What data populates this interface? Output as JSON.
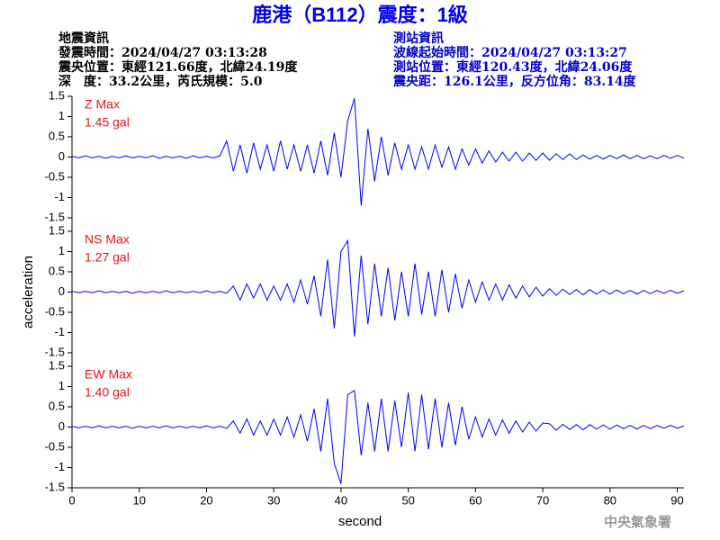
{
  "header": {
    "title": "鹿港（B112）震度：1級",
    "left": [
      "地震資訊",
      "發震時間：2024/04/27 03:13:28",
      "震央位置：東經121.66度，北緯24.19度",
      "深　度：33.2公里，芮氏規模：5.0"
    ],
    "right": [
      "測站資訊",
      "波線起始時間：2024/04/27 03:13:27",
      "測站位置：東經120.43度，北緯24.06度",
      "震央距：126.1公里，反方位角：83.14度"
    ]
  },
  "footer": "中央氣象署",
  "chart_data": [
    {
      "type": "line",
      "label": "Z Max",
      "max_label": "1.45 gal",
      "label_color": "#ee1111",
      "x": [
        0,
        1,
        2,
        3,
        4,
        5,
        6,
        7,
        8,
        9,
        10,
        11,
        12,
        13,
        14,
        15,
        16,
        17,
        18,
        19,
        20,
        21,
        22,
        23,
        24,
        25,
        26,
        27,
        28,
        29,
        30,
        31,
        32,
        33,
        34,
        35,
        36,
        37,
        38,
        39,
        40,
        41,
        42,
        43,
        44,
        45,
        46,
        47,
        48,
        49,
        50,
        51,
        52,
        53,
        54,
        55,
        56,
        57,
        58,
        59,
        60,
        61,
        62,
        63,
        64,
        65,
        66,
        67,
        68,
        69,
        70,
        71,
        72,
        73,
        74,
        75,
        76,
        77,
        78,
        79,
        80,
        81,
        82,
        83,
        84,
        85,
        86,
        87,
        88,
        89,
        90,
        91
      ],
      "series": [
        {
          "color": "#0000ff",
          "values": [
            0.02,
            -0.02,
            0.03,
            -0.02,
            0.02,
            -0.03,
            0.02,
            -0.02,
            0.03,
            -0.02,
            0.02,
            -0.02,
            0.03,
            -0.03,
            0.02,
            -0.02,
            0.02,
            -0.03,
            0.03,
            -0.02,
            0.02,
            -0.02,
            0.03,
            0.4,
            -0.35,
            0.3,
            -0.4,
            0.35,
            -0.3,
            0.3,
            -0.35,
            0.4,
            -0.3,
            0.3,
            -0.35,
            0.3,
            -0.4,
            0.4,
            -0.45,
            0.6,
            -0.5,
            0.9,
            1.45,
            -1.2,
            0.7,
            -0.6,
            0.5,
            -0.45,
            0.35,
            -0.3,
            0.3,
            -0.3,
            0.25,
            -0.3,
            0.3,
            -0.25,
            0.25,
            -0.3,
            0.2,
            -0.2,
            0.2,
            -0.15,
            0.15,
            -0.12,
            0.12,
            -0.1,
            0.12,
            -0.1,
            0.1,
            -0.08,
            0.1,
            -0.08,
            0.08,
            -0.06,
            0.08,
            -0.06,
            0.05,
            -0.05,
            0.04,
            -0.05,
            0.04,
            -0.04,
            0.05,
            -0.04,
            0.04,
            -0.04,
            0.03,
            -0.04,
            0.04,
            -0.03,
            0.04,
            -0.03
          ]
        }
      ],
      "xlim": [
        0,
        91
      ],
      "ylim": [
        -1.5,
        1.5
      ],
      "yticks": [
        -1.5,
        -1,
        -0.5,
        0,
        0.5,
        1,
        1.5
      ]
    },
    {
      "type": "line",
      "label": "NS Max",
      "max_label": "1.27 gal",
      "label_color": "#ee1111",
      "ylabel": "acceleration",
      "x": [
        0,
        1,
        2,
        3,
        4,
        5,
        6,
        7,
        8,
        9,
        10,
        11,
        12,
        13,
        14,
        15,
        16,
        17,
        18,
        19,
        20,
        21,
        22,
        23,
        24,
        25,
        26,
        27,
        28,
        29,
        30,
        31,
        32,
        33,
        34,
        35,
        36,
        37,
        38,
        39,
        40,
        41,
        42,
        43,
        44,
        45,
        46,
        47,
        48,
        49,
        50,
        51,
        52,
        53,
        54,
        55,
        56,
        57,
        58,
        59,
        60,
        61,
        62,
        63,
        64,
        65,
        66,
        67,
        68,
        69,
        70,
        71,
        72,
        73,
        74,
        75,
        76,
        77,
        78,
        79,
        80,
        81,
        82,
        83,
        84,
        85,
        86,
        87,
        88,
        89,
        90,
        91
      ],
      "series": [
        {
          "color": "#0000ff",
          "values": [
            0.02,
            -0.02,
            0.02,
            -0.02,
            0.03,
            -0.02,
            0.02,
            -0.02,
            0.02,
            -0.03,
            0.02,
            -0.02,
            0.02,
            -0.02,
            0.03,
            -0.02,
            0.02,
            -0.02,
            0.02,
            -0.02,
            0.03,
            -0.02,
            0.02,
            -0.03,
            0.15,
            -0.2,
            0.2,
            -0.15,
            0.2,
            -0.2,
            0.15,
            -0.2,
            0.2,
            -0.25,
            0.3,
            -0.3,
            0.4,
            -0.6,
            0.8,
            -0.9,
            1.0,
            1.27,
            -1.1,
            0.9,
            -0.8,
            0.7,
            -0.6,
            0.6,
            -0.7,
            0.5,
            -0.6,
            0.7,
            -0.55,
            0.5,
            -0.6,
            0.55,
            -0.5,
            0.45,
            -0.4,
            0.3,
            -0.25,
            0.25,
            -0.2,
            0.2,
            -0.2,
            0.18,
            -0.15,
            0.15,
            -0.12,
            0.12,
            -0.1,
            0.08,
            -0.08,
            0.07,
            -0.06,
            0.06,
            -0.07,
            0.06,
            -0.05,
            0.05,
            -0.05,
            0.05,
            -0.04,
            0.04,
            -0.05,
            0.04,
            -0.04,
            0.04,
            -0.03,
            0.04,
            -0.03,
            0.03
          ]
        }
      ],
      "xlim": [
        0,
        91
      ],
      "ylim": [
        -1.5,
        1.5
      ],
      "yticks": [
        -1.5,
        -1,
        -0.5,
        0,
        0.5,
        1,
        1.5
      ]
    },
    {
      "type": "line",
      "label": "EW Max",
      "max_label": "1.40 gal",
      "label_color": "#ee1111",
      "xlabel": "second",
      "x": [
        0,
        1,
        2,
        3,
        4,
        5,
        6,
        7,
        8,
        9,
        10,
        11,
        12,
        13,
        14,
        15,
        16,
        17,
        18,
        19,
        20,
        21,
        22,
        23,
        24,
        25,
        26,
        27,
        28,
        29,
        30,
        31,
        32,
        33,
        34,
        35,
        36,
        37,
        38,
        39,
        40,
        41,
        42,
        43,
        44,
        45,
        46,
        47,
        48,
        49,
        50,
        51,
        52,
        53,
        54,
        55,
        56,
        57,
        58,
        59,
        60,
        61,
        62,
        63,
        64,
        65,
        66,
        67,
        68,
        69,
        70,
        71,
        72,
        73,
        74,
        75,
        76,
        77,
        78,
        79,
        80,
        81,
        82,
        83,
        84,
        85,
        86,
        87,
        88,
        89,
        90,
        91
      ],
      "series": [
        {
          "color": "#0000ff",
          "values": [
            0.02,
            -0.02,
            0.02,
            -0.02,
            0.03,
            -0.02,
            0.02,
            -0.02,
            0.02,
            -0.03,
            0.02,
            -0.02,
            0.02,
            -0.02,
            0.03,
            -0.02,
            0.02,
            -0.02,
            0.02,
            -0.02,
            0.03,
            -0.02,
            0.02,
            -0.03,
            0.15,
            -0.15,
            0.2,
            -0.2,
            0.15,
            -0.2,
            0.2,
            -0.2,
            0.25,
            -0.25,
            0.3,
            -0.35,
            0.45,
            -0.6,
            0.7,
            -0.9,
            -1.4,
            0.8,
            0.9,
            -0.7,
            0.6,
            -0.6,
            0.7,
            -0.6,
            0.65,
            -0.5,
            0.85,
            -0.6,
            0.8,
            -0.55,
            0.7,
            -0.5,
            0.6,
            -0.45,
            0.5,
            -0.3,
            0.25,
            -0.25,
            0.2,
            -0.2,
            0.18,
            -0.15,
            0.15,
            -0.12,
            0.12,
            -0.1,
            0.1,
            0.08,
            -0.08,
            0.07,
            -0.06,
            0.06,
            -0.07,
            0.06,
            -0.05,
            0.05,
            -0.05,
            0.05,
            -0.04,
            0.04,
            -0.05,
            0.04,
            -0.04,
            0.04,
            -0.03,
            0.04,
            -0.03,
            0.03
          ]
        }
      ],
      "xlim": [
        0,
        91
      ],
      "ylim": [
        -1.5,
        1.5
      ],
      "yticks": [
        -1.5,
        -1,
        -0.5,
        0,
        0.5,
        1,
        1.5
      ],
      "xticks": [
        0,
        10,
        20,
        30,
        40,
        50,
        60,
        70,
        80,
        90
      ]
    }
  ]
}
